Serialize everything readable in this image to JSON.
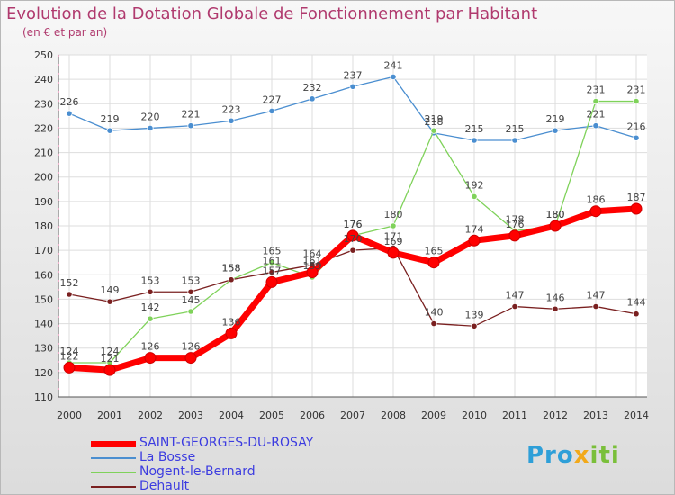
{
  "title": "Evolution de la Dotation Globale de Fonctionnement par Habitant",
  "subtitle": "(en € et par an)",
  "logo": {
    "part1": "Pro",
    "part2": "x",
    "part3": "iti"
  },
  "chart_data": {
    "type": "line",
    "title": "Evolution de la Dotation Globale de Fonctionnement par Habitant",
    "subtitle": "(en € et par an)",
    "x": [
      "2000",
      "2001",
      "2002",
      "2003",
      "2004",
      "2005",
      "2006",
      "2007",
      "2008",
      "2009",
      "2010",
      "2011",
      "2012",
      "2013",
      "2014"
    ],
    "ylim": [
      110,
      250
    ],
    "yticks": [
      110,
      120,
      130,
      140,
      150,
      160,
      170,
      180,
      190,
      200,
      210,
      220,
      230,
      240,
      250
    ],
    "grid": true,
    "legend_position": "bottom",
    "series": [
      {
        "name": "SAINT-GEORGES-DU-ROSAY",
        "color": "#ff0000",
        "values": [
          122,
          121,
          126,
          126,
          136,
          157,
          161,
          176,
          169,
          165,
          174,
          176,
          180,
          186,
          187
        ]
      },
      {
        "name": "La Bosse",
        "color": "#4a8ed0",
        "values": [
          226,
          219,
          220,
          221,
          223,
          227,
          232,
          237,
          241,
          218,
          215,
          215,
          219,
          221,
          216
        ]
      },
      {
        "name": "Nogent-le-Bernard",
        "color": "#7fd25a",
        "values": [
          124,
          124,
          142,
          145,
          158,
          165,
          159,
          176,
          180,
          219,
          192,
          178,
          180,
          231,
          231
        ]
      },
      {
        "name": "Dehault",
        "color": "#7a2020",
        "values": [
          152,
          149,
          153,
          153,
          158,
          161,
          164,
          170,
          171,
          140,
          139,
          147,
          146,
          147,
          144
        ]
      }
    ]
  }
}
